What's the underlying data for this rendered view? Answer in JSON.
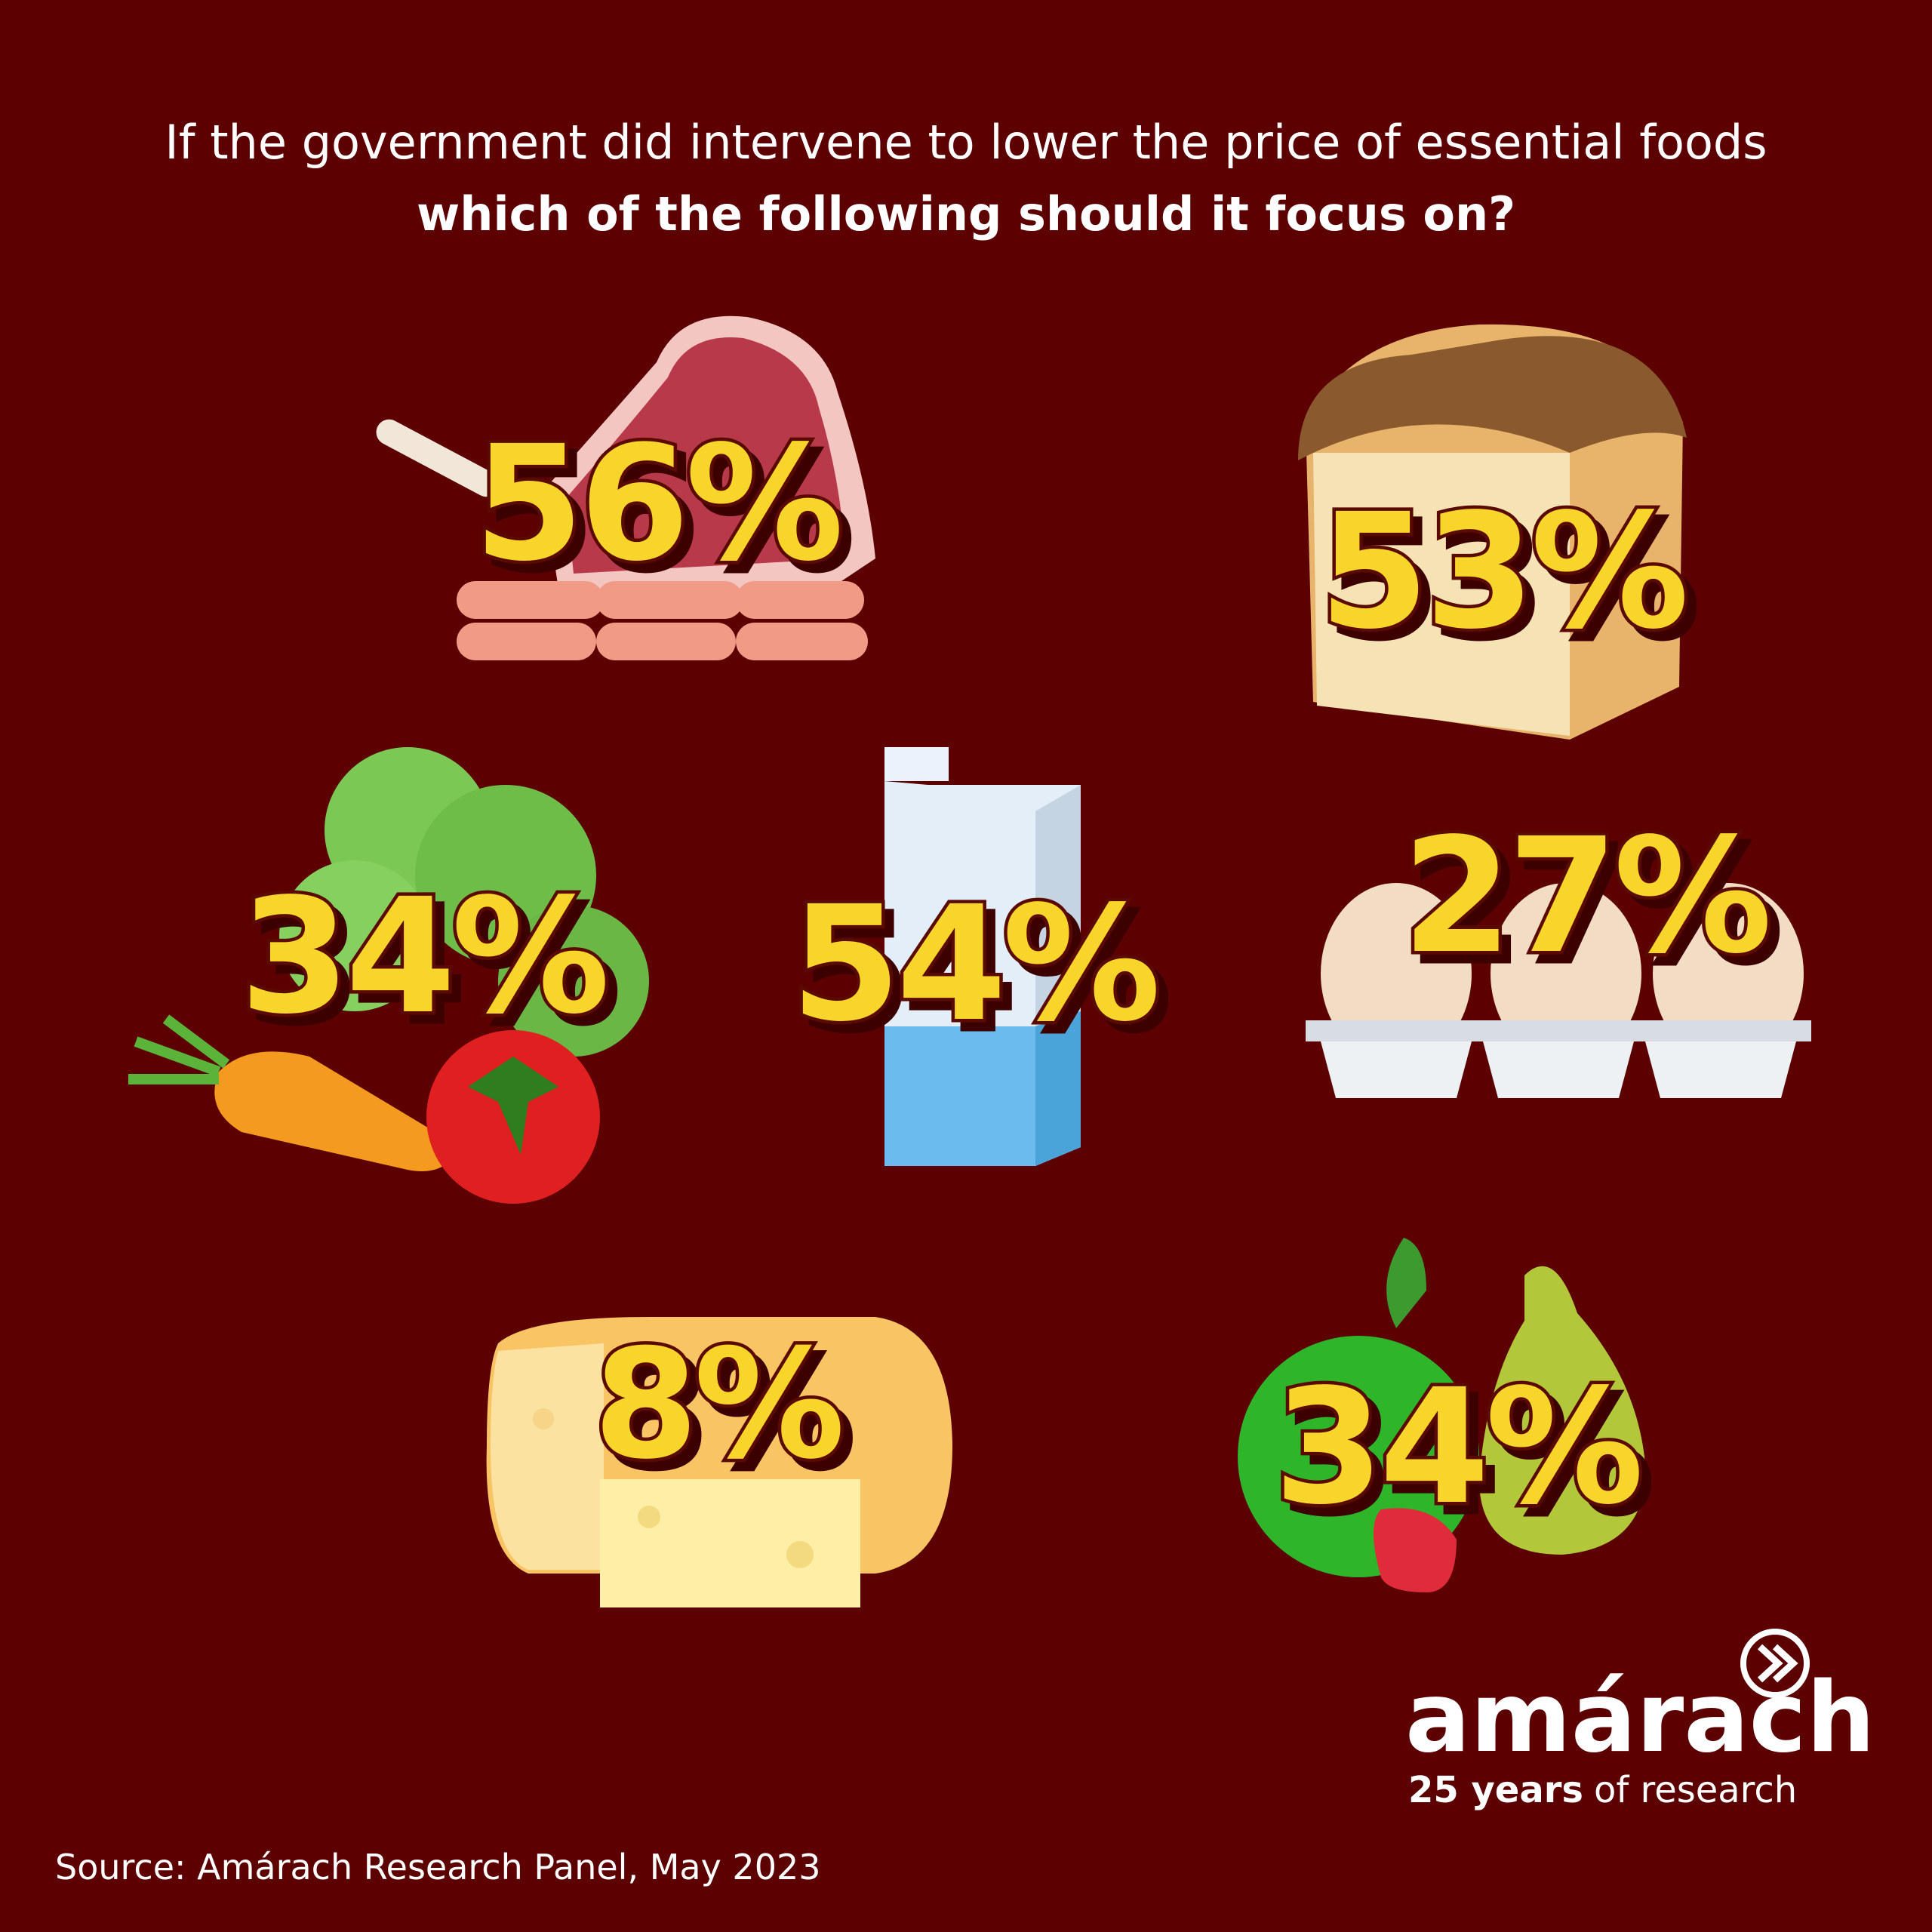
{
  "header": {
    "line1": "If the government did intervene to lower the price of essential foods",
    "line2": "which of the following should it focus on?"
  },
  "items": [
    "56%",
    "53%",
    "34%",
    "54%",
    "27%",
    "8%",
    "34%"
  ],
  "logo": {
    "name": "amárach",
    "tagline_bold": "25 years",
    "tagline_rest": "of research"
  },
  "source": "Source: Amárach Research Panel, May 2023"
}
